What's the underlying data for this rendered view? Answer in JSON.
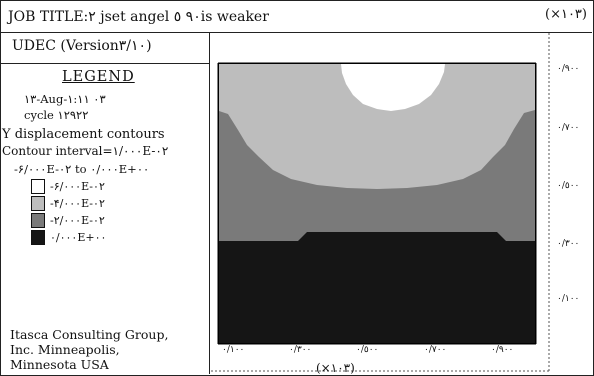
{
  "header": {
    "title": "JOB TITLE:٢ jset angel ٩٠ ٥is weaker",
    "y_scale": "(×١٠٣)"
  },
  "panel": {
    "program": "UDEC (Version٣/١٠)",
    "legend_title": "LEGEND",
    "date": "١٣-Aug-٠٣ ١:١١",
    "cycle": "cycle ١٢٩٢٢",
    "plot_type": "Y displacement contours",
    "contour_interval": "Contour interval=١/٠٠٠E-٠٢",
    "range": "-۶/٠٠٠E-٠٢ to ٠/٠٠٠E+٠٠",
    "legend_items": [
      {
        "label": "-۶/٠٠٠E-٠٢",
        "color": "#ffffff"
      },
      {
        "label": "-۴/٠٠٠E-٠٢",
        "color": "#bdbdbd"
      },
      {
        "label": "-٢/٠٠٠E-٠٢",
        "color": "#7a7a7a"
      },
      {
        "label": "٠/٠٠٠E+٠٠",
        "color": "#151515"
      }
    ],
    "company_line1": "Itasca Consulting Group,",
    "company_line2": "Inc. Minneapolis,",
    "company_line3": "Minnesota USA"
  },
  "axes": {
    "y_ticks": [
      "٠/٩٠٠",
      "٠/٧٠٠",
      "٠/٥٠٠",
      "٠/٣٠٠",
      "٠/١٠٠"
    ],
    "x_ticks": [
      "٠/١٠٠",
      "٠/٣٠٠",
      "٠/٥٠٠",
      "٠/٧٠٠",
      "٠/٩٠٠"
    ],
    "x_scale": "(×١٠٣)"
  },
  "colors": {
    "level_0": "#ffffff",
    "level_1": "#bdbdbd",
    "level_2": "#7a7a7a",
    "level_3": "#151515"
  }
}
